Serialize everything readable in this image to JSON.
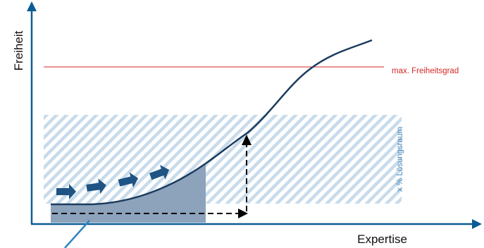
{
  "labels": {
    "y_axis": "Freiheit",
    "x_axis": "Expertise",
    "max_freedom": "max. Freiheitsgrad",
    "solution_space": "x % Lösungsraum"
  },
  "colors": {
    "axis": "#0b5c94",
    "curve": "#1b3b5e",
    "max_line": "#d62728",
    "max_label": "#d62728",
    "solution_label": "#4a89b8",
    "hatch": "#c7dbeb",
    "filled_area": "#8da2bb",
    "arrow_fill": "#1e5384",
    "dashed": "#000000",
    "pointer": "#2e86c1"
  },
  "icons": [
    "flow-arrow-icon",
    "flow-arrow-icon",
    "flow-arrow-icon",
    "flow-arrow-icon"
  ]
}
